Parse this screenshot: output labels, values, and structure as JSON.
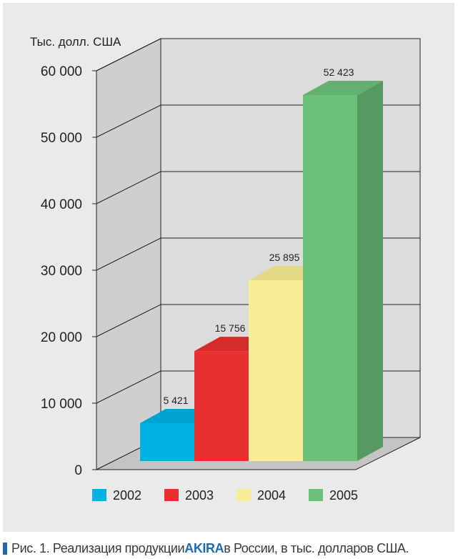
{
  "chart_data": {
    "type": "bar",
    "categories": [
      "2002",
      "2003",
      "2004",
      "2005"
    ],
    "values": [
      5421,
      15756,
      25895,
      52423
    ],
    "value_labels": [
      "5 421",
      "15 756",
      "25 895",
      "52 423"
    ],
    "ylabel": "Тыс. долл. США",
    "ylim": [
      0,
      60000
    ],
    "yticks": [
      "0",
      "10 000",
      "20 000",
      "30 000",
      "40 000",
      "50 000",
      "60 000"
    ],
    "grid": true,
    "legend_position": "bottom",
    "colors": {
      "2002": "#00b1e1",
      "2003": "#e92f2f",
      "2004": "#f6ed96",
      "2005": "#6cc07a"
    }
  },
  "caption": {
    "prefix": "Рис. 1. Реализация продукции ",
    "brand": "AKIRA",
    "suffix": " в России, в тыс. долларов США."
  }
}
